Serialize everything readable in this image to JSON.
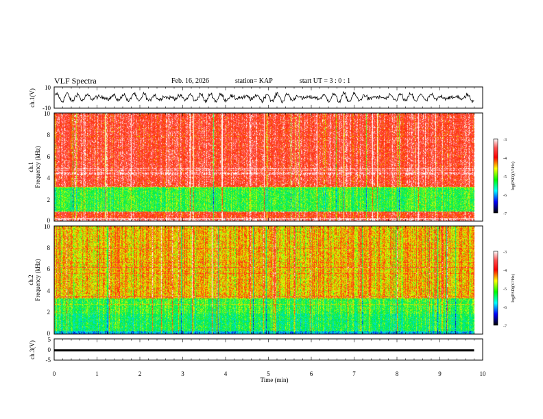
{
  "header": {
    "title": "VLF Spectra",
    "date": "Feb. 16, 2026",
    "station": "station= KAP",
    "start": "start  UT  =   3  : 0  : 1"
  },
  "chart_data": [
    {
      "type": "line",
      "id": "ch1-waveform",
      "ylabel": "ch.1(V)",
      "ylim": [
        -10,
        10
      ],
      "yticklabels": [
        "10",
        "-10"
      ],
      "xlim": [
        0,
        10
      ],
      "description": "noisy oscillating voltage, amplitude roughly ±6 V, trace ends near 9.8 min"
    },
    {
      "type": "heatmap",
      "id": "ch1-spectrogram",
      "ylabel_top": "ch.1",
      "ylabel": "Frequency  (kHz)",
      "ylim": [
        0,
        10
      ],
      "yticklabels": [
        "0",
        "2",
        "4",
        "6",
        "8",
        "10"
      ],
      "xlim": [
        0,
        10
      ],
      "data_end_min": 9.8,
      "bands_khz": [
        {
          "from": 0.0,
          "to": 0.3,
          "level": -3.2
        },
        {
          "from": 0.3,
          "to": 0.9,
          "level": -3.6
        },
        {
          "from": 0.9,
          "to": 3.2,
          "level": -4.9
        },
        {
          "from": 3.2,
          "to": 10.0,
          "level": -3.5
        }
      ],
      "colorbar": {
        "label": "log(PSD)(V²/Hz)",
        "range": [
          -7,
          -3
        ],
        "ticks": [
          "-3",
          "-4",
          "-5",
          "-6",
          "-7"
        ]
      }
    },
    {
      "type": "heatmap",
      "id": "ch2-spectrogram",
      "ylabel_top": "ch.2",
      "ylabel": "Frequency  (kHz)",
      "ylim": [
        0,
        10
      ],
      "yticklabels": [
        "0",
        "2",
        "4",
        "6",
        "8",
        "10"
      ],
      "xlim": [
        0,
        10
      ],
      "data_end_min": 9.8,
      "bands_khz": [
        {
          "from": 0.0,
          "to": 0.3,
          "level": -5.8
        },
        {
          "from": 0.3,
          "to": 1.9,
          "level": -5.1
        },
        {
          "from": 1.9,
          "to": 3.3,
          "level": -4.9
        },
        {
          "from": 3.3,
          "to": 10.0,
          "level": -4.2
        }
      ],
      "colorbar": {
        "label": "log(PSD)(V²/Hz)",
        "range": [
          -7,
          -3
        ],
        "ticks": [
          "-3",
          "-4",
          "-5",
          "-6",
          "-7"
        ]
      }
    },
    {
      "type": "line",
      "id": "ch3-waveform",
      "ylabel": "ch.3(V)",
      "ylim": [
        -5,
        5
      ],
      "yticklabels": [
        "5",
        "0",
        "-5"
      ],
      "xlim": [
        0,
        10
      ],
      "description": "thick flat band centered near 0 V, about -0.9 V to 0.1 V"
    }
  ],
  "xaxis": {
    "label": "Time  (min)",
    "ticklabels": [
      "0",
      "1",
      "2",
      "3",
      "4",
      "5",
      "6",
      "7",
      "8",
      "9",
      "10"
    ]
  }
}
